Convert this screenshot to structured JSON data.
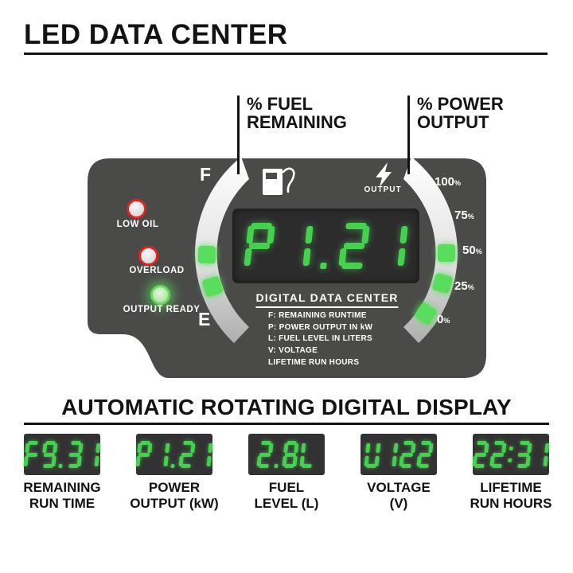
{
  "header": {
    "title": "LED DATA CENTER"
  },
  "callouts": {
    "fuel": {
      "line1": "% FUEL",
      "line2": "REMAINING"
    },
    "power": {
      "line1": "% POWER",
      "line2": "OUTPUT"
    }
  },
  "panel": {
    "indicators": [
      {
        "label": "LOW OIL",
        "lit": false,
        "ring_color": "#e02424"
      },
      {
        "label": "OVERLOAD",
        "lit": false,
        "ring_color": "#e02424"
      },
      {
        "label": "OUTPUT READY",
        "lit": true,
        "ring_color": "#67d75f"
      }
    ],
    "fuel_gauge": {
      "full_label": "F",
      "empty_label": "E",
      "icon": "fuel-pump-icon",
      "lit_segments": 2
    },
    "power_gauge": {
      "icon": "lightning-icon",
      "label": "OUTPUT",
      "ticks": [
        "100%",
        "75%",
        "50%",
        "25%",
        "0%"
      ],
      "lit_segments": 3
    },
    "display": {
      "value": "P1.21"
    },
    "info": {
      "title": "DIGITAL DATA CENTER",
      "lines": [
        "F: REMAINING RUNTIME",
        "P: POWER OUTPUT IN kW",
        "L: FUEL LEVEL IN LITERS",
        "V: VOLTAGE",
        "LIFETIME RUN HOURS"
      ]
    }
  },
  "rotating": {
    "heading": "AUTOMATIC ROTATING DIGITAL DISPLAY",
    "displays": [
      {
        "value": "F9.31",
        "label_line1": "REMAINING",
        "label_line2": "RUN TIME"
      },
      {
        "value": "P1.21",
        "label_line1": "POWER",
        "label_line2": "OUTPUT (kW)"
      },
      {
        "value": "2.8L",
        "label_line1": "FUEL",
        "label_line2": "LEVEL (L)"
      },
      {
        "value": "U122",
        "label_line1": "VOLTAGE",
        "label_line2": "(V)"
      },
      {
        "value": "22:31",
        "label_line1": "LIFETIME",
        "label_line2": "RUN HOURS"
      }
    ]
  },
  "colors": {
    "panel": "#4a4a49",
    "display_background": "#2c2c2c",
    "led_green": "#44d24e",
    "gauge_segment_green": "#58dd5b",
    "alert_ring_red": "#e02424",
    "ready_green": "#67d75f"
  }
}
